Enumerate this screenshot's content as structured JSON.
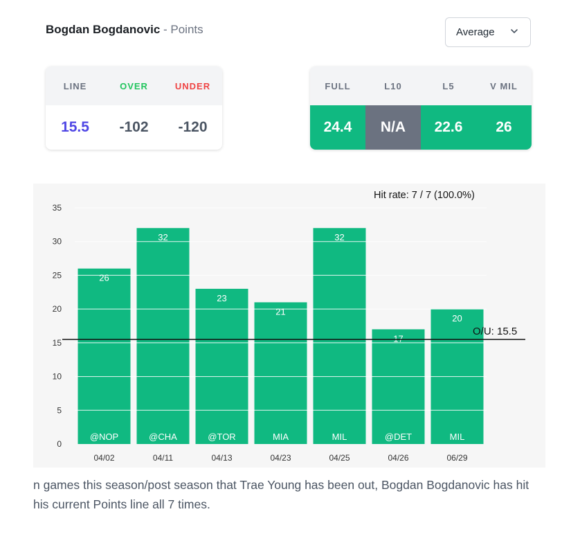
{
  "header": {
    "player": "Bogdan Bogdanovic",
    "separator": " - ",
    "stat": "Points"
  },
  "dropdown": {
    "selected": "Average",
    "icon": "chevron-down-icon"
  },
  "line_card": {
    "headers": [
      "LINE",
      "OVER",
      "UNDER"
    ],
    "values": [
      "15.5",
      "-102",
      "-120"
    ]
  },
  "avg_card": {
    "headers": [
      "FULL",
      "L10",
      "L5",
      "V MIL"
    ],
    "values": [
      "24.4",
      "N/A",
      "22.6",
      "26"
    ]
  },
  "colors": {
    "bar": "#10b981",
    "na": "#6b7280",
    "over": "#22c55e",
    "under": "#ef4444",
    "line_value": "#4f46e5"
  },
  "chart_data": {
    "type": "bar",
    "hit_rate": "Hit rate: 7 / 7 (100.0%)",
    "ou_label": "O/U: 15.5",
    "ou_value": 15.5,
    "ylim": [
      0,
      35
    ],
    "yticks": [
      0,
      5,
      10,
      15,
      20,
      25,
      30,
      35
    ],
    "grid": "horizontal",
    "categories": [
      "04/02",
      "04/11",
      "04/13",
      "04/23",
      "04/25",
      "04/26",
      "06/29"
    ],
    "opponents": [
      "@NOP",
      "@CHA",
      "@TOR",
      "MIA",
      "MIL",
      "@DET",
      "MIL"
    ],
    "values": [
      26,
      32,
      23,
      21,
      32,
      17,
      20
    ]
  },
  "footer_text": "n games this season/post season that Trae Young has been out, Bogdan Bogdanovic has hit his current Points line all 7 times."
}
